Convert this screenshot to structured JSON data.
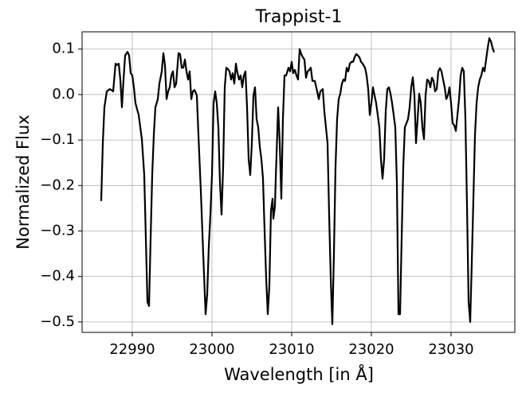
{
  "chart_data": {
    "type": "line",
    "title": "Trappist-1",
    "xlabel": "Wavelength [in Å]",
    "ylabel": "Normalized Flux",
    "color": "#000000",
    "grid": true,
    "xlim": [
      22983.7,
      23038.0
    ],
    "ylim": [
      -0.523,
      0.138
    ],
    "xticks": [
      22990,
      23000,
      23010,
      23020,
      23030
    ],
    "yticks": [
      {
        "value": -0.5,
        "label": "−0.5"
      },
      {
        "value": -0.4,
        "label": "−0.4"
      },
      {
        "value": -0.3,
        "label": "−0.3"
      },
      {
        "value": -0.2,
        "label": "−0.2"
      },
      {
        "value": -0.1,
        "label": "−0.1"
      },
      {
        "value": 0,
        "label": "0.0"
      },
      0.1
    ],
    "x": [
      22986.1,
      22986.3,
      22986.5,
      22986.8,
      22987.2,
      22987.6,
      22987.9,
      22988.1,
      22988.3,
      22988.5,
      22988.7,
      22988.9,
      22989.1,
      22989.4,
      22989.6,
      22989.8,
      22990.0,
      22990.2,
      22990.4,
      22990.8,
      22991.2,
      22991.5,
      22991.7,
      22991.9,
      22992.1,
      22992.3,
      22992.5,
      22992.7,
      22992.9,
      22993.2,
      22993.4,
      22993.7,
      22993.9,
      22994.1,
      22994.3,
      22994.5,
      22994.7,
      22994.9,
      22995.1,
      22995.3,
      22995.5,
      22995.8,
      22996.0,
      22996.2,
      22996.4,
      22996.6,
      22996.8,
      22997.0,
      22997.2,
      22997.4,
      22997.6,
      22997.8,
      22998.1,
      22998.3,
      22998.6,
      22998.9,
      22999.2,
      22999.4,
      22999.6,
      22999.8,
      23000.0,
      23000.2,
      23000.4,
      23000.6,
      23000.8,
      23001.0,
      23001.2,
      23001.4,
      23001.6,
      23001.8,
      23002.0,
      23002.2,
      23002.4,
      23002.6,
      23002.8,
      23003.0,
      23003.2,
      23003.4,
      23003.6,
      23003.8,
      23004.0,
      23004.2,
      23004.4,
      23004.6,
      23004.8,
      23005.0,
      23005.2,
      23005.4,
      23005.6,
      23005.8,
      23006.0,
      23006.2,
      23006.4,
      23006.6,
      23006.8,
      23007.0,
      23007.2,
      23007.4,
      23007.6,
      23007.7,
      23007.9,
      23008.0,
      23008.2,
      23008.3,
      23008.5,
      23008.7,
      23008.9,
      23009.1,
      23009.3,
      23009.6,
      23009.8,
      23010.0,
      23010.2,
      23010.4,
      23010.6,
      23010.8,
      23011.0,
      23011.2,
      23011.4,
      23011.6,
      23011.8,
      23012.0,
      23012.2,
      23012.4,
      23012.6,
      23012.9,
      23013.2,
      23013.4,
      23013.6,
      23013.9,
      23014.1,
      23014.3,
      23014.5,
      23014.7,
      23014.9,
      23015.1,
      23015.3,
      23015.5,
      23015.7,
      23015.9,
      23016.1,
      23016.3,
      23016.5,
      23016.7,
      23016.9,
      23017.1,
      23017.3,
      23017.5,
      23017.7,
      23017.9,
      23018.1,
      23018.3,
      23018.5,
      23018.7,
      23018.9,
      23019.2,
      23019.4,
      23019.6,
      23019.8,
      23020.0,
      23020.2,
      23020.4,
      23020.6,
      23020.8,
      23021.0,
      23021.2,
      23021.4,
      23021.6,
      23021.8,
      23022.0,
      23022.2,
      23022.4,
      23022.6,
      23022.8,
      23023.0,
      23023.2,
      23023.4,
      23023.6,
      23023.8,
      23024.0,
      23024.2,
      23024.4,
      23024.6,
      23024.8,
      23025.0,
      23025.2,
      23025.4,
      23025.6,
      23025.8,
      23026.0,
      23026.2,
      23026.4,
      23026.6,
      23026.8,
      23027.0,
      23027.2,
      23027.4,
      23027.6,
      23027.8,
      23028.0,
      23028.2,
      23028.4,
      23028.6,
      23028.8,
      23029.0,
      23029.2,
      23029.4,
      23029.6,
      23029.8,
      23030.0,
      23030.2,
      23030.4,
      23030.6,
      23030.8,
      23031.0,
      23031.2,
      23031.4,
      23031.6,
      23031.8,
      23032.0,
      23032.2,
      23032.4,
      23032.6,
      23032.8,
      23033.0,
      23033.2,
      23033.4,
      23033.6,
      23033.8,
      23034.0,
      23034.2,
      23034.4,
      23034.6,
      23034.8,
      23035.0,
      23035.2,
      23035.4
    ],
    "values": [
      -0.234,
      -0.107,
      -0.028,
      0.007,
      0.012,
      0.007,
      0.068,
      0.065,
      0.068,
      0.033,
      -0.028,
      0.033,
      0.086,
      0.094,
      0.086,
      0.047,
      0.042,
      0.016,
      -0.019,
      -0.045,
      -0.098,
      -0.177,
      -0.316,
      -0.456,
      -0.465,
      -0.316,
      -0.177,
      -0.089,
      -0.028,
      -0.01,
      0.024,
      0.051,
      0.091,
      0.065,
      -0.01,
      0.007,
      0.016,
      0.042,
      0.051,
      0.016,
      0.024,
      0.091,
      0.089,
      0.059,
      0.059,
      0.077,
      0.051,
      0.033,
      0.051,
      -0.01,
      0.007,
      0.01,
      -0.002,
      -0.089,
      -0.212,
      -0.351,
      -0.483,
      -0.439,
      -0.334,
      -0.264,
      -0.177,
      -0.019,
      0.007,
      -0.019,
      -0.072,
      -0.194,
      -0.264,
      -0.159,
      0.016,
      0.059,
      0.056,
      0.051,
      0.033,
      0.047,
      0.024,
      0.068,
      0.047,
      0.033,
      0.042,
      0.016,
      0.042,
      0.051,
      -0.028,
      -0.142,
      -0.177,
      -0.107,
      -0.002,
      0.016,
      -0.054,
      -0.072,
      -0.115,
      -0.142,
      -0.185,
      -0.299,
      -0.404,
      -0.483,
      -0.421,
      -0.255,
      -0.229,
      -0.273,
      -0.246,
      -0.185,
      -0.08,
      -0.028,
      -0.107,
      -0.229,
      -0.054,
      0.042,
      0.042,
      0.059,
      0.051,
      0.072,
      0.047,
      0.054,
      0.042,
      0.033,
      0.1,
      0.089,
      0.082,
      0.077,
      0.037,
      0.051,
      0.054,
      0.059,
      0.03,
      0.03,
      0.007,
      -0.01,
      0.007,
      0.012,
      -0.037,
      -0.072,
      -0.107,
      -0.264,
      -0.404,
      -0.505,
      -0.351,
      -0.159,
      -0.054,
      -0.01,
      0.002,
      0.024,
      0.033,
      0.03,
      0.059,
      0.051,
      0.068,
      0.072,
      0.072,
      0.082,
      0.089,
      0.086,
      0.082,
      0.072,
      0.068,
      0.059,
      0.042,
      0.012,
      -0.045,
      -0.019,
      0.016,
      -0.002,
      -0.019,
      -0.045,
      -0.072,
      -0.142,
      -0.185,
      -0.142,
      -0.037,
      0.012,
      0.016,
      0.002,
      -0.019,
      -0.045,
      -0.072,
      -0.194,
      -0.483,
      -0.483,
      -0.316,
      -0.159,
      -0.072,
      -0.063,
      -0.054,
      -0.028,
      0.016,
      0.038,
      -0.002,
      -0.107,
      -0.054,
      0.002,
      -0.019,
      -0.072,
      -0.098,
      -0.002,
      0.033,
      0.03,
      0.016,
      0.037,
      0.03,
      0.007,
      0.012,
      0.051,
      0.058,
      0.051,
      0.033,
      0.016,
      -0.01,
      -0.002,
      0.016,
      -0.019,
      -0.063,
      -0.068,
      -0.08,
      -0.045,
      -0.01,
      0.042,
      0.059,
      0.051,
      -0.054,
      -0.246,
      -0.456,
      -0.5,
      -0.369,
      -0.229,
      -0.089,
      -0.019,
      0.016,
      0.033,
      0.042,
      0.059,
      0.051,
      0.077,
      0.103,
      0.124,
      0.117,
      0.103,
      0.093
    ]
  }
}
